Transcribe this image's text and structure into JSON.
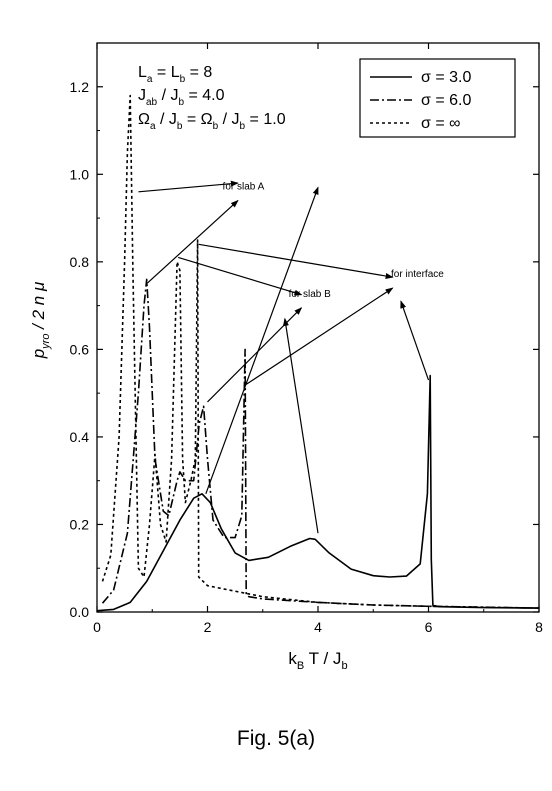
{
  "caption": "Fig. 5(a)",
  "chart_data": {
    "type": "line",
    "xlabel": "k_B T / J_b",
    "ylabel": "p_yro / 2 n μ",
    "xlim": [
      0,
      8
    ],
    "ylim": [
      0,
      1.3
    ],
    "xticks": [
      0,
      2,
      4,
      6,
      8
    ],
    "xtick_labels": [
      "0",
      "2",
      "4",
      "6",
      "8"
    ],
    "yticks": [
      0.0,
      0.2,
      0.4,
      0.6,
      0.8,
      1.0,
      1.2
    ],
    "ytick_labels": [
      "0.0",
      "0.2",
      "0.4",
      "0.6",
      "0.8",
      "1.0",
      "1.2"
    ],
    "grid": false,
    "legend_position": "top-right",
    "parameters": [
      {
        "lhs": "L",
        "lhs_sub": "a",
        "rhs": "= L",
        "rhs_sub": "b",
        "tail": "= 8"
      },
      {
        "lhs": "J",
        "lhs_sub": "ab",
        "rhs": "/ J",
        "rhs_sub": "b",
        "tail": "= 4.0"
      },
      {
        "text": "Ω_a / J_b = Ω_b / J_b = 1.0"
      }
    ],
    "series": [
      {
        "name": "σ = 3.0",
        "line_style": "solid",
        "x": [
          0.0,
          0.3,
          0.6,
          0.9,
          1.2,
          1.5,
          1.75,
          1.9,
          2.05,
          2.25,
          2.5,
          2.75,
          3.1,
          3.5,
          3.85,
          3.95,
          4.2,
          4.6,
          5.0,
          5.3,
          5.6,
          5.85,
          5.98,
          6.03,
          6.05,
          6.08,
          6.2,
          7.0,
          8.0
        ],
        "y": [
          0.003,
          0.006,
          0.022,
          0.07,
          0.14,
          0.21,
          0.26,
          0.27,
          0.25,
          0.19,
          0.135,
          0.118,
          0.125,
          0.15,
          0.168,
          0.166,
          0.135,
          0.098,
          0.083,
          0.08,
          0.082,
          0.11,
          0.27,
          0.54,
          0.12,
          0.015,
          0.012,
          0.01,
          0.009
        ]
      },
      {
        "name": "σ = 6.0",
        "line_style": "dash-dot",
        "x": [
          0.1,
          0.3,
          0.55,
          0.75,
          0.85,
          0.9,
          0.95,
          1.05,
          1.2,
          1.3,
          1.45,
          1.5,
          1.6,
          1.75,
          1.85,
          1.93,
          2.0,
          2.1,
          2.3,
          2.5,
          2.62,
          2.68,
          2.7,
          2.75,
          3.0,
          4.0,
          5.0,
          6.0,
          7.0,
          8.0
        ],
        "y": [
          0.02,
          0.05,
          0.18,
          0.5,
          0.7,
          0.76,
          0.65,
          0.35,
          0.23,
          0.22,
          0.3,
          0.32,
          0.3,
          0.3,
          0.43,
          0.47,
          0.35,
          0.21,
          0.17,
          0.17,
          0.22,
          0.6,
          0.04,
          0.035,
          0.03,
          0.022,
          0.016,
          0.013,
          0.011,
          0.009
        ]
      },
      {
        "name": "σ = ∞",
        "line_style": "dotted",
        "x": [
          0.1,
          0.25,
          0.4,
          0.5,
          0.55,
          0.6,
          0.65,
          0.75,
          0.85,
          0.95,
          1.05,
          1.15,
          1.25,
          1.35,
          1.45,
          1.5,
          1.55,
          1.6,
          1.7,
          1.78,
          1.82,
          1.84,
          2.0,
          3.0,
          4.0,
          5.0,
          6.0,
          7.0,
          8.0
        ],
        "y": [
          0.07,
          0.13,
          0.4,
          0.8,
          1.05,
          1.18,
          0.78,
          0.1,
          0.08,
          0.2,
          0.36,
          0.2,
          0.16,
          0.35,
          0.8,
          0.78,
          0.35,
          0.25,
          0.3,
          0.35,
          0.85,
          0.08,
          0.06,
          0.035,
          0.022,
          0.016,
          0.013,
          0.011,
          0.009
        ]
      }
    ],
    "annotations": [
      {
        "text": "for slab A",
        "x": 2.65,
        "y": 0.965,
        "arrow_tails": [
          [
            0.75,
            0.96
          ],
          [
            0.9,
            0.75
          ],
          [
            1.97,
            0.27
          ]
        ],
        "arrow_heads": [
          [
            2.55,
            0.98
          ],
          [
            2.55,
            0.94
          ],
          [
            4.0,
            0.97
          ]
        ]
      },
      {
        "text": "for slab B",
        "x": 3.85,
        "y": 0.72,
        "arrow_tails": [
          [
            1.47,
            0.81
          ],
          [
            2.0,
            0.48
          ],
          [
            4.0,
            0.18
          ]
        ],
        "arrow_heads": [
          [
            3.7,
            0.725
          ],
          [
            3.7,
            0.695
          ],
          [
            3.4,
            0.67
          ]
        ]
      },
      {
        "text": "for interface",
        "x": 5.8,
        "y": 0.765,
        "arrow_tails": [
          [
            1.84,
            0.84
          ],
          [
            2.7,
            0.52
          ],
          [
            6.0,
            0.53
          ]
        ],
        "arrow_heads": [
          [
            5.35,
            0.765
          ],
          [
            5.35,
            0.74
          ],
          [
            5.5,
            0.71
          ]
        ]
      }
    ]
  }
}
